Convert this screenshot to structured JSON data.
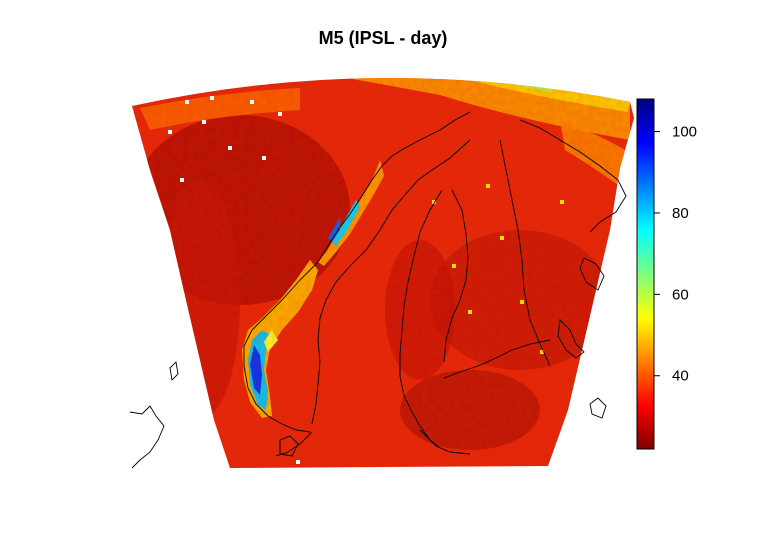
{
  "title": "M5 (IPSL - day)",
  "colorbar": {
    "min": 22,
    "max": 108,
    "ticks": [
      {
        "value": 40,
        "label": "40"
      },
      {
        "value": 60,
        "label": "60"
      },
      {
        "value": 80,
        "label": "80"
      },
      {
        "value": 100,
        "label": "100"
      }
    ],
    "stops": [
      "#7f0000",
      "#ff0000",
      "#ff7f00",
      "#ffff00",
      "#7fff7f",
      "#00ffff",
      "#007fff",
      "#0000ff",
      "#00007f"
    ]
  }
}
